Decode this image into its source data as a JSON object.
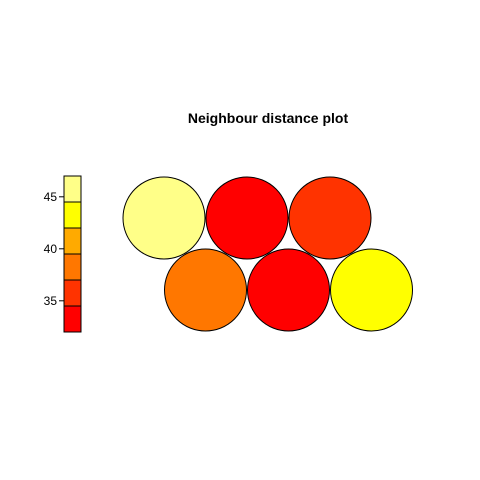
{
  "chart_data": {
    "type": "heatmap",
    "title": "Neighbour distance plot",
    "colorbar": {
      "ticks": [
        35,
        40,
        45
      ],
      "range": [
        32,
        47
      ],
      "bins": [
        {
          "from": 32.0,
          "to": 34.5,
          "color": "#FF0000"
        },
        {
          "from": 34.5,
          "to": 37.0,
          "color": "#FF3300"
        },
        {
          "from": 37.0,
          "to": 39.5,
          "color": "#FF7700"
        },
        {
          "from": 39.5,
          "to": 42.0,
          "color": "#FFAA00"
        },
        {
          "from": 42.0,
          "to": 44.5,
          "color": "#FFFF00"
        },
        {
          "from": 44.5,
          "to": 47.0,
          "color": "#FFFF88"
        }
      ]
    },
    "grid": {
      "layout": "hexagonal",
      "rows": 2,
      "cols": 3,
      "cells": [
        {
          "row": 0,
          "col": 0,
          "value": 46.0,
          "color": "#FFFF88"
        },
        {
          "row": 0,
          "col": 1,
          "value": 33.0,
          "color": "#FF0000"
        },
        {
          "row": 0,
          "col": 2,
          "value": 35.5,
          "color": "#FF3300"
        },
        {
          "row": 1,
          "col": 0,
          "value": 38.0,
          "color": "#FF7700"
        },
        {
          "row": 1,
          "col": 1,
          "value": 33.5,
          "color": "#FF0000"
        },
        {
          "row": 1,
          "col": 2,
          "value": 43.0,
          "color": "#FFFF00"
        }
      ]
    }
  }
}
